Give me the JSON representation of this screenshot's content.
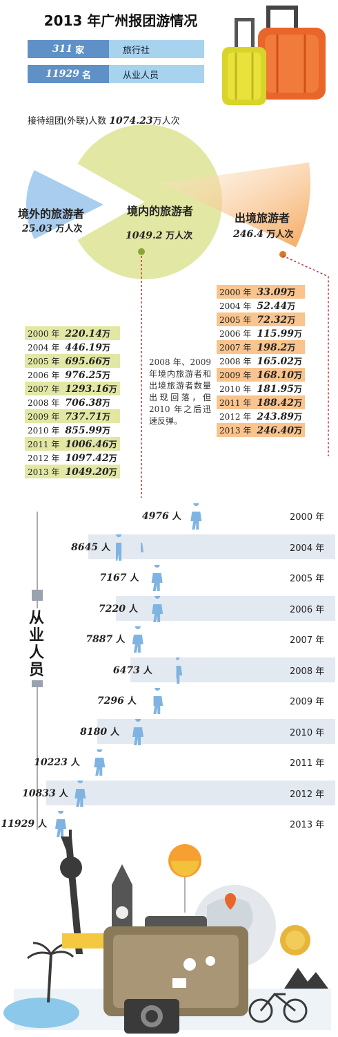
{
  "title": "2013 年广州报团游情况",
  "stats": [
    {
      "value": "311",
      "unit": "家",
      "label": "旅行社"
    },
    {
      "value": "11929",
      "unit": "名",
      "label": "从业人员"
    }
  ],
  "total": {
    "label": "接待组团(外联)人数",
    "value": "1074.23",
    "unit": "万人次"
  },
  "colors": {
    "domestic": "#e3e7a4",
    "outbound": "#f5a85c",
    "inbound": "#a9cdee",
    "bar_blue": "#5f90c6",
    "bar_light": "#a7d3ee",
    "staff_band": "#e3e9f1",
    "person": "#7fb4e2"
  },
  "chart_data": [
    {
      "type": "pie",
      "segments": [
        {
          "name": "境外的旅游者",
          "value": 25.03,
          "unit": "万人次"
        },
        {
          "name": "境内的旅游者",
          "value": 1049.2,
          "unit": "万人次"
        },
        {
          "name": "出境旅游者",
          "value": 246.4,
          "unit": "万人次"
        }
      ]
    },
    {
      "type": "table",
      "series_name": "境内的旅游者",
      "unit": "万",
      "year_suffix": "年",
      "rows": [
        {
          "year": "2000",
          "value": "220.14"
        },
        {
          "year": "2004",
          "value": "446.19"
        },
        {
          "year": "2005",
          "value": "695.66"
        },
        {
          "year": "2006",
          "value": "976.25"
        },
        {
          "year": "2007",
          "value": "1293.16"
        },
        {
          "year": "2008",
          "value": "706.38"
        },
        {
          "year": "2009",
          "value": "737.71"
        },
        {
          "year": "2010",
          "value": "855.99"
        },
        {
          "year": "2011",
          "value": "1006.46"
        },
        {
          "year": "2012",
          "value": "1097.42"
        },
        {
          "year": "2013",
          "value": "1049.20"
        }
      ]
    },
    {
      "type": "table",
      "series_name": "出境旅游者",
      "unit": "万",
      "year_suffix": "年",
      "rows": [
        {
          "year": "2000",
          "value": "33.09"
        },
        {
          "year": "2004",
          "value": "52.44"
        },
        {
          "year": "2005",
          "value": "72.32"
        },
        {
          "year": "2006",
          "value": "115.99"
        },
        {
          "year": "2007",
          "value": "198.2"
        },
        {
          "year": "2008",
          "value": "165.02"
        },
        {
          "year": "2009",
          "value": "168.10"
        },
        {
          "year": "2010",
          "value": "181.95"
        },
        {
          "year": "2011",
          "value": "188.42"
        },
        {
          "year": "2012",
          "value": "243.89"
        },
        {
          "year": "2013",
          "value": "246.40"
        }
      ]
    },
    {
      "type": "bar",
      "series_name": "从业人员",
      "unit": "人",
      "year_suffix": "年",
      "categories": [
        "2000",
        "2004",
        "2005",
        "2006",
        "2007",
        "2008",
        "2009",
        "2010",
        "2011",
        "2012",
        "2013"
      ],
      "values": [
        4976,
        8645,
        7167,
        7220,
        7887,
        6473,
        7296,
        8180,
        10223,
        10833,
        11929
      ]
    }
  ],
  "note": "2008 年、2009 年境内旅游者和出境旅游者数量出现回落，但 2010 年之后迅速反弹。",
  "staff_axis_label": "从业人员",
  "illustration": {
    "luggage": "luggage-icon",
    "city_icons": "landmarks-icon"
  }
}
